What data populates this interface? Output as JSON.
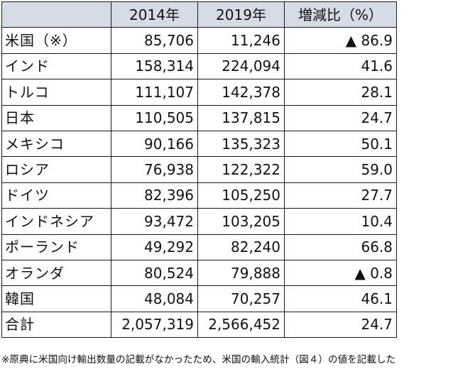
{
  "table": {
    "headers": [
      "",
      "2014年",
      "2019年",
      "増減比（%）"
    ],
    "rows": [
      {
        "label": "米国（※）",
        "y2014": "85,706",
        "y2019": "11,246",
        "change": "▲ 86.9"
      },
      {
        "label": "インド",
        "y2014": "158,314",
        "y2019": "224,094",
        "change": "41.6"
      },
      {
        "label": "トルコ",
        "y2014": "111,107",
        "y2019": "142,378",
        "change": "28.1"
      },
      {
        "label": "日本",
        "y2014": "110,505",
        "y2019": "137,815",
        "change": "24.7"
      },
      {
        "label": "メキシコ",
        "y2014": "90,166",
        "y2019": "135,323",
        "change": "50.1"
      },
      {
        "label": "ロシア",
        "y2014": "76,938",
        "y2019": "122,322",
        "change": "59.0"
      },
      {
        "label": "ドイツ",
        "y2014": "82,396",
        "y2019": "105,250",
        "change": "27.7"
      },
      {
        "label": "インドネシア",
        "y2014": "93,472",
        "y2019": "103,205",
        "change": "10.4"
      },
      {
        "label": "ポーランド",
        "y2014": "49,292",
        "y2019": "82,240",
        "change": "66.8"
      },
      {
        "label": "オランダ",
        "y2014": "80,524",
        "y2019": "79,888",
        "change": "▲ 0.8"
      },
      {
        "label": "韓国",
        "y2014": "48,084",
        "y2019": "70,257",
        "change": "46.1"
      },
      {
        "label": "合計",
        "y2014": "2,057,319",
        "y2019": "2,566,452",
        "change": "24.7"
      }
    ],
    "header_bg": "#d6dce5"
  },
  "note": "※原典に米国向け輸出数量の記載がなかったため、米国の輸入統計（図４）の値を記載した"
}
